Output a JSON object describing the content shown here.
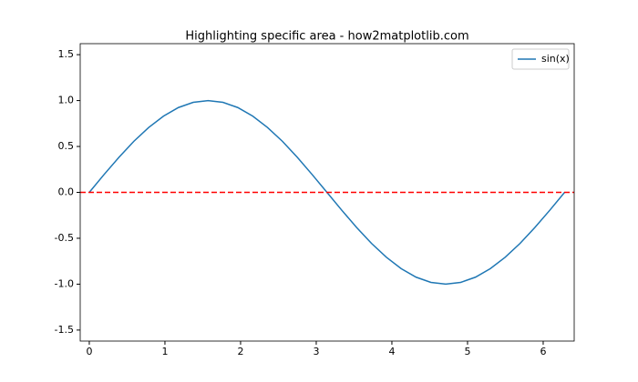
{
  "chart_data": {
    "type": "line",
    "title": "Highlighting specific area - how2matplotlib.com",
    "x": [
      0,
      0.196,
      0.393,
      0.589,
      0.785,
      0.982,
      1.178,
      1.374,
      1.571,
      1.767,
      1.963,
      2.16,
      2.356,
      2.553,
      2.749,
      2.945,
      3.142,
      3.338,
      3.534,
      3.731,
      3.927,
      4.123,
      4.32,
      4.516,
      4.712,
      4.909,
      5.105,
      5.301,
      5.498,
      5.694,
      5.89,
      6.087,
      6.283
    ],
    "series": [
      {
        "name": "sin(x)",
        "color": "#1f77b4",
        "values": [
          0,
          0.195,
          0.383,
          0.556,
          0.707,
          0.831,
          0.924,
          0.981,
          1,
          0.981,
          0.924,
          0.831,
          0.707,
          0.556,
          0.383,
          0.195,
          0,
          -0.195,
          -0.383,
          -0.556,
          -0.707,
          -0.831,
          -0.924,
          -0.981,
          -1,
          -0.981,
          -0.924,
          -0.831,
          -0.707,
          -0.556,
          -0.383,
          -0.195,
          0
        ]
      }
    ],
    "hlines": [
      {
        "y": 0,
        "color": "#ff0000",
        "style": "dashed"
      }
    ],
    "xlim": [
      -0.12,
      6.41
    ],
    "ylim": [
      -1.62,
      1.62
    ],
    "xticks": [
      0,
      1,
      2,
      3,
      4,
      5,
      6
    ],
    "yticks": [
      -1.5,
      {
        "value": -1,
        "label": "-1.0"
      },
      -0.5,
      {
        "value": 0,
        "label": "0.0"
      },
      0.5,
      {
        "value": 1,
        "label": "1.0"
      },
      1.5
    ],
    "legend": "upper right"
  }
}
